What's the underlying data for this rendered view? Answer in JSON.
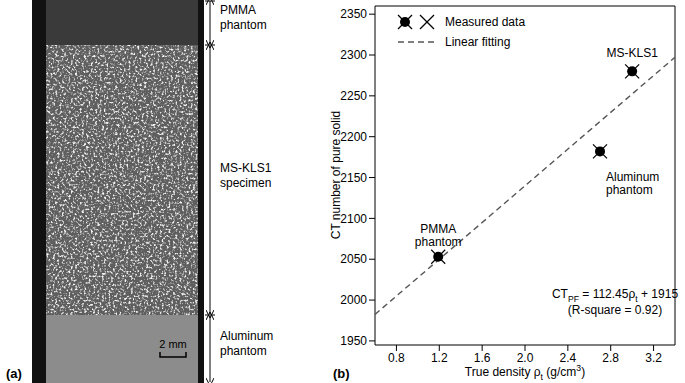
{
  "panel_a": {
    "label": "(a)",
    "regions": [
      {
        "name": [
          "PMMA",
          "phantom"
        ]
      },
      {
        "name": [
          "MS-KLS1",
          "specimen"
        ]
      },
      {
        "name": [
          "Aluminum",
          "phantom"
        ]
      }
    ],
    "scale_bar": "2 mm"
  },
  "chart_data": {
    "type": "scatter",
    "label": "(b)",
    "x_label": [
      {
        "text": "True density ρ"
      },
      {
        "text": "t",
        "sub": true
      },
      {
        "text": " (g/cm"
      },
      {
        "text": "3",
        "sup": true
      },
      {
        "text": ")"
      }
    ],
    "y_label": "CT number of pure solid",
    "xlim": [
      0.6,
      3.4
    ],
    "xticks": [
      0.8,
      1.2,
      1.6,
      {
        "value": 2,
        "label": "2.0"
      },
      2.4,
      2.8,
      3.2
    ],
    "ylim": [
      1945,
      2360
    ],
    "yticks": [
      1950,
      2000,
      2050,
      2100,
      2150,
      2200,
      2250,
      2300,
      2350
    ],
    "legend": "top-left",
    "series": [
      {
        "name": "Measured data",
        "type": "scatter",
        "marker": "circle_x",
        "color": "#000000",
        "x": [
          1.19,
          2.7,
          3.0
        ],
        "values": [
          2053,
          2182,
          2280
        ],
        "point_labels": [
          [
            "PMMA",
            "phantom"
          ],
          [
            "Aluminum",
            "phantom"
          ],
          [
            "MS-KLS1"
          ]
        ]
      },
      {
        "name": "Linear fitting",
        "type": "line",
        "line_style": "dashed",
        "color": "#555555",
        "x": [
          0.6,
          3.4
        ],
        "values": [
          1982.5,
          2297.3
        ]
      }
    ],
    "annotation": [
      [
        {
          "text": "CT"
        },
        {
          "text": "PF",
          "sub": true
        },
        {
          "text": " = 112.45ρ"
        },
        {
          "text": "t",
          "sub": true
        },
        {
          "text": " + 1915"
        }
      ],
      [
        {
          "text": "(R-square = 0.92)"
        }
      ]
    ]
  }
}
